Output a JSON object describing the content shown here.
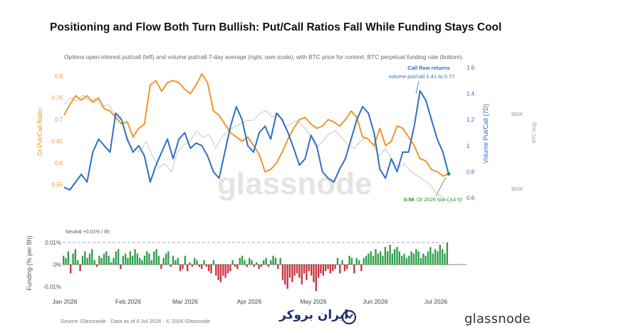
{
  "title": "Positioning and Flow Both Turn Bullish: Put/Call Ratios Fall While Funding Stays Cool",
  "subtitle": "Options open-interest put/call (left) and volume put/call 7-day average (right, own scale), with BTC price for context; BTC perpetual funding rate (bottom).",
  "footer": "Source: Glassnode · Data as of 6 Jul 2026 · © 2026 Glassnode",
  "brand": "glassnode",
  "watermark": "glassnode",
  "logo_text": "ایران بروکر",
  "colors": {
    "oi": "#f0962a",
    "vol": "#2f6fc4",
    "btc": "#c8c8c8",
    "fund_pos": "#2e9e4a",
    "fund_neg": "#c8343a",
    "annotation_green": "#2e8b3a"
  },
  "chart_data": {
    "type": "line",
    "x_range": [
      "2026-01-01",
      "2026-07-06"
    ],
    "x_ticks": [
      "Jan 2026",
      "Feb 2026",
      "Mar 2026",
      "Apr 2026",
      "May 2026",
      "Jun 2026",
      "Jul 2026"
    ],
    "left_axis": {
      "label": "OI Put/Call Ratio",
      "ticks": [
        "0.8",
        "0.75",
        "0.7",
        "0.65",
        "0.6",
        "0.55"
      ],
      "ylim": [
        0.52,
        0.82
      ]
    },
    "right_axis": {
      "label": "Volume Put/Call (7D)",
      "ticks": [
        "1.6",
        "1.4",
        "1.2",
        "1",
        "0.8",
        "0.6"
      ],
      "ylim": [
        0.6,
        1.6
      ]
    },
    "btc_axis": {
      "label": "BTC (log)",
      "ticks": [
        "$80K",
        "$60K"
      ]
    },
    "series": [
      {
        "name": "OI Put/Call Ratio",
        "axis": "left",
        "values": [
          0.71,
          0.735,
          0.755,
          0.745,
          0.755,
          0.74,
          0.75,
          0.725,
          0.72,
          0.705,
          0.69,
          0.695,
          0.66,
          0.68,
          0.69,
          0.78,
          0.79,
          0.765,
          0.785,
          0.79,
          0.785,
          0.77,
          0.76,
          0.78,
          0.805,
          0.785,
          0.72,
          0.71,
          0.69,
          0.67,
          0.66,
          0.65,
          0.66,
          0.64,
          0.62,
          0.58,
          0.585,
          0.6,
          0.625,
          0.655,
          0.68,
          0.7,
          0.705,
          0.69,
          0.68,
          0.685,
          0.7,
          0.695,
          0.685,
          0.7,
          0.72,
          0.705,
          0.66,
          0.655,
          0.64,
          0.68,
          0.64,
          0.65,
          0.685,
          0.68,
          0.66,
          0.64,
          0.61,
          0.605,
          0.585,
          0.58,
          0.57,
          0.575
        ]
      },
      {
        "name": "Volume Put/Call (7D)",
        "axis": "right",
        "values": [
          0.68,
          0.66,
          0.72,
          0.78,
          0.72,
          0.95,
          1.05,
          1.0,
          0.95,
          1.25,
          1.2,
          1.05,
          0.95,
          1.0,
          0.92,
          0.72,
          0.85,
          0.95,
          1.05,
          0.9,
          1.05,
          1.1,
          0.98,
          1.02,
          1.0,
          0.92,
          0.8,
          0.75,
          0.95,
          1.15,
          1.3,
          1.2,
          1.0,
          0.95,
          1.1,
          1.15,
          1.05,
          1.25,
          1.2,
          1.1,
          0.98,
          0.85,
          0.9,
          1.08,
          1.0,
          0.8,
          0.75,
          0.72,
          0.82,
          0.9,
          1.05,
          1.2,
          1.3,
          1.25,
          1.1,
          0.82,
          0.75,
          0.9,
          0.8,
          0.95,
          0.95,
          1.15,
          1.42,
          1.35,
          1.2,
          1.05,
          0.95,
          0.78
        ]
      },
      {
        "name": "BTC (log)",
        "axis": "btc",
        "values": [
          83,
          85,
          84,
          86,
          84,
          85,
          82,
          83,
          80,
          79,
          72,
          70,
          69,
          72,
          68,
          65,
          66,
          64,
          69,
          71,
          72,
          75,
          73,
          74,
          70,
          73,
          75,
          76,
          77,
          78,
          78,
          80,
          81,
          79,
          80,
          76,
          77,
          78,
          76,
          74,
          70,
          72,
          74,
          75,
          73,
          71,
          70,
          72,
          73,
          71,
          68,
          70,
          67,
          65,
          66,
          64,
          63,
          62,
          61,
          59,
          58,
          57
        ]
      }
    ],
    "annotations": {
      "top_bold": "Call flow returns",
      "top_sub": "volume put/call 1.41 to 0.77",
      "bottom_value": "0.56",
      "bottom_text": "OI 2026 low (Jul 5)"
    },
    "funding": {
      "ylabel": "Funding (% per 8h)",
      "ticks": [
        "0.01%",
        "0%",
        "-0.01%"
      ],
      "ylim": [
        -0.013,
        0.011
      ],
      "neutral_label": "Neutral +0.01% / 8h",
      "values": [
        0.004,
        0.003,
        0.006,
        -0.004,
        0.005,
        0.007,
        0.002,
        -0.003,
        0.004,
        0.006,
        0.003,
        0.005,
        0.007,
        0.002,
        -0.001,
        0.004,
        0.003,
        0.005,
        0.006,
        0.004,
        0.001,
        0.003,
        0.006,
        0.007,
        -0.002,
        0.004,
        0.005,
        0.003,
        0.006,
        0.004,
        0.007,
        0.005,
        0.003,
        0.002,
        0.004,
        0.006,
        0.005,
        0.002,
        0.006,
        0.007,
        0.004,
        -0.002,
        0.003,
        0.005,
        0.006,
        -0.001,
        0.004,
        0.002,
        0.003,
        -0.003,
        -0.002,
        0.004,
        -0.003,
        0.001,
        -0.001,
        0.003,
        0.002,
        -0.001,
        -0.002,
        0.002,
        -0.001,
        -0.003,
        -0.004,
        0.002,
        -0.005,
        -0.007,
        -0.008,
        -0.005,
        -0.006,
        -0.004,
        -0.003,
        0.002,
        -0.001,
        -0.002,
        0.003,
        0.004,
        0.002,
        -0.001,
        0.003,
        0.002,
        -0.001,
        0.001,
        -0.002,
        -0.001,
        0.002,
        0.003,
        -0.001,
        0.002,
        0.004,
        0.003,
        -0.002,
        0.003,
        -0.007,
        -0.009,
        -0.011,
        -0.006,
        -0.008,
        -0.005,
        -0.004,
        -0.006,
        -0.009,
        -0.004,
        -0.007,
        -0.003,
        -0.005,
        -0.008,
        -0.012,
        -0.006,
        -0.004,
        -0.005,
        -0.003,
        -0.002,
        -0.004,
        -0.003,
        -0.002,
        0.003,
        -0.004,
        0.002,
        -0.003,
        -0.002,
        0.004,
        0.003,
        -0.004,
        0.003,
        0.002,
        -0.003,
        0.003,
        0.004,
        0.005,
        0.006,
        0.004,
        0.007,
        0.005,
        0.006,
        0.004,
        0.008,
        0.006,
        0.009,
        0.005,
        0.007,
        0.008,
        0.006,
        0.004,
        0.005,
        0.003,
        0.004,
        0.006,
        0.005,
        0.007,
        0.006,
        0.003,
        0.005,
        0.004,
        0.006,
        0.008,
        0.005,
        0.007,
        0.006,
        0.009,
        0.007,
        0.005,
        0.01
      ]
    }
  }
}
